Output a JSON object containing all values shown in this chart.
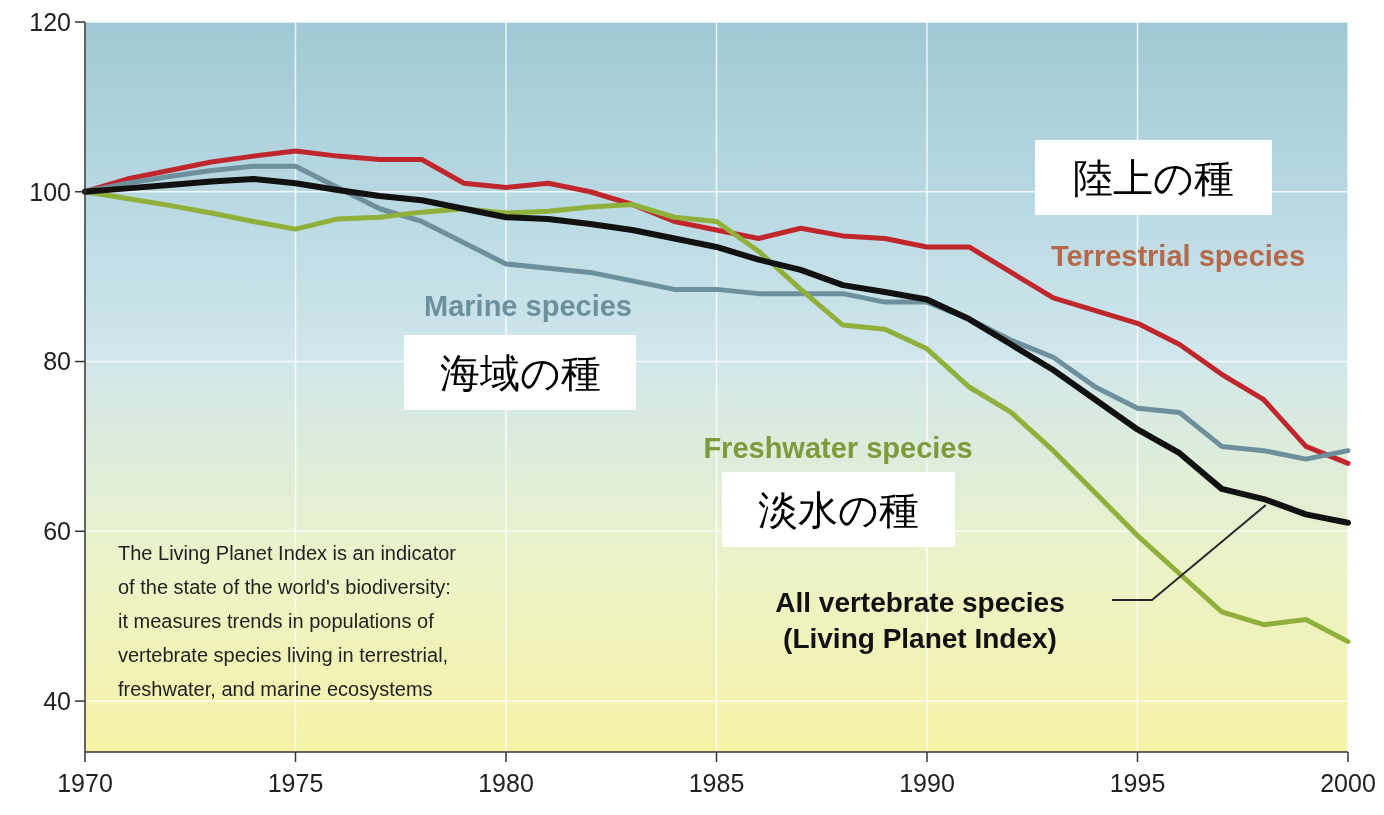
{
  "chart_data": {
    "type": "line",
    "x": [
      1970,
      1971,
      1972,
      1973,
      1974,
      1975,
      1976,
      1977,
      1978,
      1979,
      1980,
      1981,
      1982,
      1983,
      1984,
      1985,
      1986,
      1987,
      1988,
      1989,
      1990,
      1991,
      1992,
      1993,
      1994,
      1995,
      1996,
      1997,
      1998,
      1999,
      2000
    ],
    "series": [
      {
        "name": "Terrestrial species",
        "color": "#c0272d",
        "values": [
          100,
          101.5,
          102.5,
          103.5,
          104.2,
          104.8,
          104.2,
          103.8,
          103.8,
          101,
          100.5,
          101,
          100,
          98.5,
          96.5,
          95.5,
          94.5,
          95.7,
          94.8,
          94.5,
          93.5,
          93.5,
          90.5,
          87.5,
          86,
          84.5,
          82,
          78.5,
          75.5,
          70,
          68
        ]
      },
      {
        "name": "Marine species",
        "color": "#6e8f9c",
        "values": [
          100,
          101,
          101.8,
          102.5,
          103,
          103,
          100.5,
          98,
          96.5,
          94,
          91.5,
          91,
          90.5,
          89.5,
          88.5,
          88.5,
          88,
          88,
          88,
          87,
          87,
          85,
          82.5,
          80.5,
          77,
          74.5,
          74,
          70,
          69.5,
          68.5,
          69.5
        ]
      },
      {
        "name": "Freshwater species",
        "color": "#8fb03a",
        "values": [
          100,
          99.2,
          98.4,
          97.5,
          96.5,
          95.6,
          96.8,
          97,
          97.6,
          98,
          97.5,
          97.7,
          98.2,
          98.5,
          97,
          96.5,
          93,
          88.5,
          84.3,
          83.8,
          81.5,
          77,
          74,
          69.5,
          64.5,
          59.5,
          55,
          50.5,
          49,
          49.6,
          47
        ]
      },
      {
        "name": "All vertebrate species (Living Planet Index)",
        "color": "#111111",
        "values": [
          100,
          100.4,
          100.8,
          101.2,
          101.5,
          101,
          100.2,
          99.5,
          99,
          98,
          97,
          96.8,
          96.2,
          95.5,
          94.5,
          93.5,
          92,
          90.8,
          89,
          88.2,
          87.3,
          85,
          82,
          79,
          75.5,
          72,
          69.2,
          65,
          63.8,
          62,
          61
        ]
      }
    ],
    "xlim": [
      1970,
      2000
    ],
    "xticks": [
      1970,
      1975,
      1980,
      1985,
      1990,
      1995,
      2000
    ],
    "ylim": [
      34,
      120
    ],
    "yticks": [
      40,
      60,
      80,
      100,
      120
    ],
    "grid": true,
    "annotations": [
      "陸上の種",
      "海域の種",
      "淡水の種",
      "The Living Planet Index is an indicator of the state of the world's biodiversity: it measures trends in populations of vertebrate species living in terrestrial, freshwater, and marine ecosystems"
    ]
  }
}
